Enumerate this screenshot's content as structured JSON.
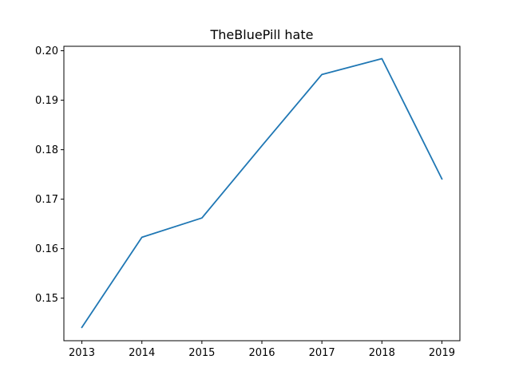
{
  "chart_data": {
    "type": "line",
    "title": "TheBluePill hate",
    "xlabel": "",
    "ylabel": "",
    "x": [
      2013,
      2014,
      2015,
      2016,
      2017,
      2018,
      2019
    ],
    "series": [
      {
        "values": [
          0.1441,
          0.1623,
          0.1662,
          0.1808,
          0.1952,
          0.1984,
          0.1741
        ]
      }
    ],
    "xlim": [
      2012.7,
      2019.3
    ],
    "ylim": [
      0.1414,
      0.2009
    ],
    "xticks": [
      "2013",
      "2014",
      "2015",
      "2016",
      "2017",
      "2018",
      "2019"
    ],
    "yticks": [
      "0.15",
      "0.16",
      "0.17",
      "0.18",
      "0.19",
      "0.20"
    ],
    "ytick_values": [
      0.15,
      0.16,
      0.17,
      0.18,
      0.19,
      0.2
    ],
    "grid": false,
    "legend": "none",
    "line_color": "#1f77b4"
  }
}
